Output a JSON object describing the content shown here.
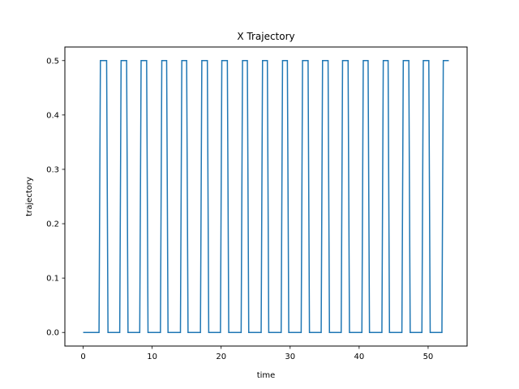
{
  "chart_data": {
    "type": "line",
    "title": "X Trajectory",
    "xlabel": "time",
    "ylabel": "trajectory",
    "xlim": [
      -2.65,
      55.65
    ],
    "ylim": [
      -0.025,
      0.525
    ],
    "xticks": [
      0,
      10,
      20,
      30,
      40,
      50
    ],
    "xtick_labels": [
      "0",
      "10",
      "20",
      "30",
      "40",
      "50"
    ],
    "yticks": [
      0.0,
      0.1,
      0.2,
      0.3,
      0.4,
      0.5
    ],
    "ytick_labels": [
      "0.0",
      "0.1",
      "0.2",
      "0.3",
      "0.4",
      "0.5"
    ],
    "grid": false,
    "color": "#1f77b4",
    "series": [
      {
        "x": [
          0,
          2.3,
          2.5,
          3.4,
          3.6,
          5.3,
          5.5,
          6.3,
          6.5,
          8.2,
          8.4,
          9.2,
          9.4,
          11.2,
          11.4,
          12.1,
          12.3,
          14.1,
          14.3,
          15.0,
          15.2,
          17.0,
          17.2,
          18.0,
          18.2,
          19.9,
          20.1,
          20.9,
          21.1,
          22.9,
          23.1,
          23.8,
          24.0,
          25.8,
          26.0,
          26.7,
          26.9,
          28.7,
          28.9,
          29.6,
          29.8,
          31.6,
          31.8,
          32.6,
          32.8,
          34.5,
          34.7,
          35.5,
          35.7,
          37.4,
          37.6,
          38.4,
          38.6,
          40.4,
          40.6,
          41.3,
          41.5,
          43.3,
          43.5,
          44.2,
          44.4,
          46.2,
          46.4,
          47.2,
          47.4,
          49.1,
          49.3,
          50.1,
          50.3,
          52.0,
          52.2,
          53.0
        ],
        "y": [
          0,
          0,
          0.5,
          0.5,
          0,
          0,
          0.5,
          0.5,
          0,
          0,
          0.5,
          0.5,
          0,
          0,
          0.5,
          0.5,
          0,
          0,
          0.5,
          0.5,
          0,
          0,
          0.5,
          0.5,
          0,
          0,
          0.5,
          0.5,
          0,
          0,
          0.5,
          0.5,
          0,
          0,
          0.5,
          0.5,
          0,
          0,
          0.5,
          0.5,
          0,
          0,
          0.5,
          0.5,
          0,
          0,
          0.5,
          0.5,
          0,
          0,
          0.5,
          0.5,
          0,
          0,
          0.5,
          0.5,
          0,
          0,
          0.5,
          0.5,
          0,
          0,
          0.5,
          0.5,
          0,
          0,
          0.5,
          0.5,
          0,
          0,
          0.5,
          0.5
        ]
      }
    ]
  }
}
